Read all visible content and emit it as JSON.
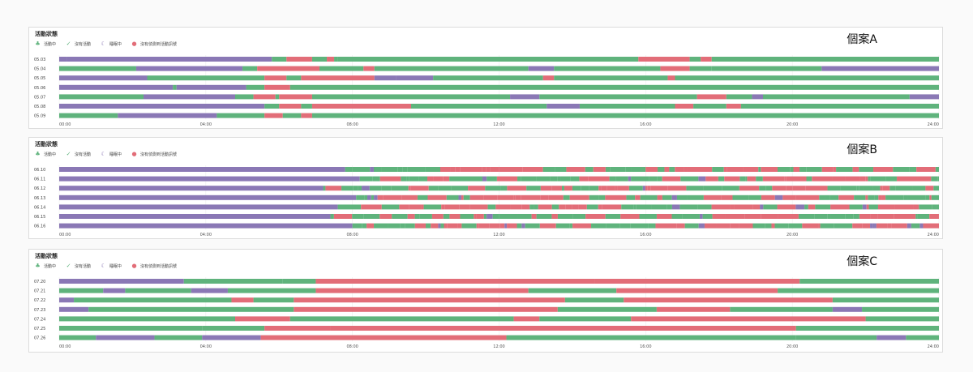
{
  "colors": {
    "active": "#5fb37c",
    "stationary": "#5fb37c",
    "sleeping": "#8a78b5",
    "no_data": "#e26d78"
  },
  "panels": [
    {
      "title": "活動狀態",
      "case_label": "個案A"
    },
    {
      "title": "活動狀態",
      "case_label": "個案B"
    },
    {
      "title": "活動狀態",
      "case_label": "個案C"
    }
  ],
  "legend": [
    {
      "label": "活動中",
      "icon": "walking-icon",
      "color": "#5fb37c"
    },
    {
      "label": "沒有活動",
      "icon": "sitting-icon",
      "color": "#5fb37c"
    },
    {
      "label": "睡眠中",
      "icon": "bed-icon",
      "color": "#8a78b5"
    },
    {
      "label": "沒有偵測到活動訊號",
      "icon": "no-signal-icon",
      "color": "#e26d78"
    }
  ],
  "chart_data": [
    {
      "type": "timeline",
      "title": "活動狀態",
      "case": "個案A",
      "x_ticks": [
        "00:00",
        "04:00",
        "08:00",
        "12:00",
        "16:00",
        "20:00",
        "24:00"
      ],
      "xlim": [
        0,
        24
      ],
      "rows": [
        {
          "label": "05.03",
          "segments": [
            [
              0,
              0.2,
              "sleep"
            ],
            [
              0.2,
              5.8,
              "sleep"
            ],
            [
              5.8,
              6.2,
              "active"
            ],
            [
              6.2,
              6.9,
              "nodata"
            ],
            [
              6.9,
              7.3,
              "active"
            ],
            [
              7.3,
              7.5,
              "nodata"
            ],
            [
              7.5,
              7.6,
              "active"
            ],
            [
              7.6,
              15.8,
              "active"
            ],
            [
              15.8,
              17.2,
              "nodata"
            ],
            [
              17.2,
              17.5,
              "active"
            ],
            [
              17.5,
              17.8,
              "nodata"
            ],
            [
              17.8,
              24,
              "active"
            ]
          ]
        },
        {
          "label": "05.04",
          "segments": [
            [
              0,
              2.1,
              "active"
            ],
            [
              2.1,
              5.0,
              "sleep"
            ],
            [
              5.0,
              5.4,
              "active"
            ],
            [
              5.4,
              7.1,
              "nodata"
            ],
            [
              7.1,
              8.3,
              "active"
            ],
            [
              8.3,
              8.6,
              "nodata"
            ],
            [
              8.6,
              12.8,
              "active"
            ],
            [
              12.8,
              13.5,
              "sleep"
            ],
            [
              13.5,
              16.4,
              "active"
            ],
            [
              16.4,
              17.2,
              "nodata"
            ],
            [
              17.2,
              17.8,
              "active"
            ],
            [
              17.8,
              20.8,
              "active"
            ],
            [
              20.8,
              24,
              "sleep"
            ]
          ]
        },
        {
          "label": "05.05",
          "segments": [
            [
              0,
              2.4,
              "sleep"
            ],
            [
              2.4,
              5.6,
              "active"
            ],
            [
              5.6,
              6.2,
              "nodata"
            ],
            [
              6.2,
              6.6,
              "active"
            ],
            [
              6.6,
              8.6,
              "nodata"
            ],
            [
              8.6,
              9.2,
              "sleep"
            ],
            [
              9.2,
              10.2,
              "sleep"
            ],
            [
              10.2,
              13.2,
              "active"
            ],
            [
              13.2,
              13.5,
              "nodata"
            ],
            [
              13.5,
              16.6,
              "active"
            ],
            [
              16.6,
              16.8,
              "nodata"
            ],
            [
              16.8,
              24,
              "active"
            ]
          ]
        },
        {
          "label": "05.06",
          "segments": [
            [
              0,
              3.1,
              "sleep"
            ],
            [
              3.1,
              3.2,
              "active"
            ],
            [
              3.2,
              5.1,
              "sleep"
            ],
            [
              5.1,
              5.6,
              "active"
            ],
            [
              5.6,
              6.3,
              "nodata"
            ],
            [
              6.3,
              24,
              "active"
            ]
          ]
        },
        {
          "label": "05.07",
          "segments": [
            [
              0,
              2.3,
              "active"
            ],
            [
              2.3,
              4.8,
              "sleep"
            ],
            [
              4.8,
              5.3,
              "active"
            ],
            [
              5.3,
              5.9,
              "nodata"
            ],
            [
              5.9,
              6.0,
              "active"
            ],
            [
              6.0,
              6.9,
              "nodata"
            ],
            [
              6.9,
              12.3,
              "active"
            ],
            [
              12.3,
              13.1,
              "sleep"
            ],
            [
              13.1,
              17.4,
              "active"
            ],
            [
              17.4,
              18.2,
              "nodata"
            ],
            [
              18.2,
              18.9,
              "active"
            ],
            [
              18.9,
              19.2,
              "sleep"
            ],
            [
              19.2,
              23.2,
              "active"
            ],
            [
              23.2,
              24,
              "sleep"
            ]
          ]
        },
        {
          "label": "05.08",
          "segments": [
            [
              0,
              5.6,
              "sleep"
            ],
            [
              5.6,
              6.0,
              "active"
            ],
            [
              6.0,
              6.6,
              "nodata"
            ],
            [
              6.6,
              6.9,
              "active"
            ],
            [
              6.9,
              9.6,
              "nodata"
            ],
            [
              9.6,
              13.3,
              "active"
            ],
            [
              13.3,
              14.2,
              "sleep"
            ],
            [
              14.2,
              16.8,
              "active"
            ],
            [
              16.8,
              17.3,
              "nodata"
            ],
            [
              17.3,
              18.2,
              "active"
            ],
            [
              18.2,
              18.6,
              "nodata"
            ],
            [
              18.6,
              24,
              "active"
            ]
          ]
        },
        {
          "label": "05.09",
          "segments": [
            [
              0,
              1.6,
              "active"
            ],
            [
              1.6,
              4.3,
              "sleep"
            ],
            [
              4.3,
              5.6,
              "active"
            ],
            [
              5.6,
              6.1,
              "nodata"
            ],
            [
              6.1,
              6.6,
              "active"
            ],
            [
              6.6,
              6.9,
              "nodata"
            ],
            [
              6.9,
              24,
              "active"
            ]
          ]
        }
      ]
    },
    {
      "type": "timeline",
      "title": "活動狀態",
      "case": "個案B",
      "x_ticks": [
        "00:00",
        "04:00",
        "08:00",
        "12:00",
        "16:00",
        "20:00",
        "24:00"
      ],
      "xlim": [
        0,
        24
      ],
      "rows": [
        {
          "label": "06.10",
          "segments": [
            [
              0,
              7.8,
              "sleep"
            ],
            [
              7.8,
              24,
              "mixed"
            ]
          ]
        },
        {
          "label": "06.11",
          "segments": [
            [
              0,
              8.2,
              "sleep"
            ],
            [
              8.2,
              24,
              "mixed"
            ]
          ]
        },
        {
          "label": "06.12",
          "segments": [
            [
              0,
              7.2,
              "sleep"
            ],
            [
              7.2,
              24,
              "mixed"
            ]
          ]
        },
        {
          "label": "06.13",
          "segments": [
            [
              0,
              8.1,
              "sleep"
            ],
            [
              8.1,
              24,
              "mixed"
            ]
          ]
        },
        {
          "label": "06.14",
          "segments": [
            [
              0,
              7.6,
              "sleep"
            ],
            [
              7.6,
              24,
              "mixed"
            ]
          ]
        },
        {
          "label": "06.15",
          "segments": [
            [
              0,
              7.4,
              "sleep"
            ],
            [
              7.4,
              24,
              "mixed"
            ]
          ]
        },
        {
          "label": "06.16",
          "segments": [
            [
              0,
              8.0,
              "sleep"
            ],
            [
              8.0,
              24,
              "mixed"
            ]
          ]
        }
      ]
    },
    {
      "type": "timeline",
      "title": "活動狀態",
      "case": "個案C",
      "x_ticks": [
        "00:00",
        "04:00",
        "08:00",
        "12:00",
        "16:00",
        "20:00",
        "24:00"
      ],
      "xlim": [
        0,
        24
      ],
      "rows": [
        {
          "label": "07.20",
          "segments": [
            [
              0,
              3.4,
              "sleep"
            ],
            [
              3.4,
              6.1,
              "active"
            ],
            [
              6.1,
              7.0,
              "active"
            ],
            [
              7.0,
              14.6,
              "nodata"
            ],
            [
              14.6,
              20.2,
              "nodata"
            ],
            [
              20.2,
              24,
              "active"
            ]
          ]
        },
        {
          "label": "07.21",
          "segments": [
            [
              0,
              1.2,
              "active"
            ],
            [
              1.2,
              1.8,
              "sleep"
            ],
            [
              1.8,
              3.6,
              "active"
            ],
            [
              3.6,
              4.6,
              "sleep"
            ],
            [
              4.6,
              7.0,
              "active"
            ],
            [
              7.0,
              12.8,
              "nodata"
            ],
            [
              12.8,
              15.2,
              "active"
            ],
            [
              15.2,
              19.6,
              "nodata"
            ],
            [
              19.6,
              24,
              "active"
            ]
          ]
        },
        {
          "label": "07.22",
          "segments": [
            [
              0,
              0.4,
              "sleep"
            ],
            [
              0.4,
              4.7,
              "active"
            ],
            [
              4.7,
              5.3,
              "nodata"
            ],
            [
              5.3,
              6.4,
              "active"
            ],
            [
              6.4,
              13.8,
              "nodata"
            ],
            [
              13.8,
              15.4,
              "active"
            ],
            [
              15.4,
              21.1,
              "nodata"
            ],
            [
              21.1,
              24,
              "active"
            ]
          ]
        },
        {
          "label": "07.23",
          "segments": [
            [
              0,
              0.8,
              "sleep"
            ],
            [
              0.8,
              6.4,
              "active"
            ],
            [
              6.4,
              13.6,
              "nodata"
            ],
            [
              13.6,
              16.3,
              "active"
            ],
            [
              16.3,
              18.3,
              "nodata"
            ],
            [
              18.3,
              21.1,
              "active"
            ],
            [
              21.1,
              21.9,
              "sleep"
            ],
            [
              21.9,
              24,
              "active"
            ]
          ]
        },
        {
          "label": "07.24",
          "segments": [
            [
              0,
              4.8,
              "active"
            ],
            [
              4.8,
              6.3,
              "nodata"
            ],
            [
              6.3,
              12.4,
              "active"
            ],
            [
              12.4,
              13.1,
              "nodata"
            ],
            [
              13.1,
              15.6,
              "active"
            ],
            [
              15.6,
              22.0,
              "nodata"
            ],
            [
              22.0,
              24,
              "active"
            ]
          ]
        },
        {
          "label": "07.25",
          "segments": [
            [
              0,
              3.9,
              "active"
            ],
            [
              3.9,
              5.6,
              "active"
            ],
            [
              5.6,
              7.4,
              "nodata"
            ],
            [
              7.4,
              20.1,
              "nodata"
            ],
            [
              20.1,
              24,
              "active"
            ]
          ]
        },
        {
          "label": "07.26",
          "segments": [
            [
              0,
              1.0,
              "active"
            ],
            [
              1.0,
              2.6,
              "sleep"
            ],
            [
              2.6,
              3.9,
              "active"
            ],
            [
              3.9,
              5.5,
              "sleep"
            ],
            [
              5.5,
              12.2,
              "nodata"
            ],
            [
              12.2,
              20.1,
              "active"
            ],
            [
              20.1,
              22.3,
              "active"
            ],
            [
              22.3,
              23.1,
              "sleep"
            ],
            [
              23.1,
              24,
              "active"
            ]
          ]
        }
      ]
    }
  ]
}
